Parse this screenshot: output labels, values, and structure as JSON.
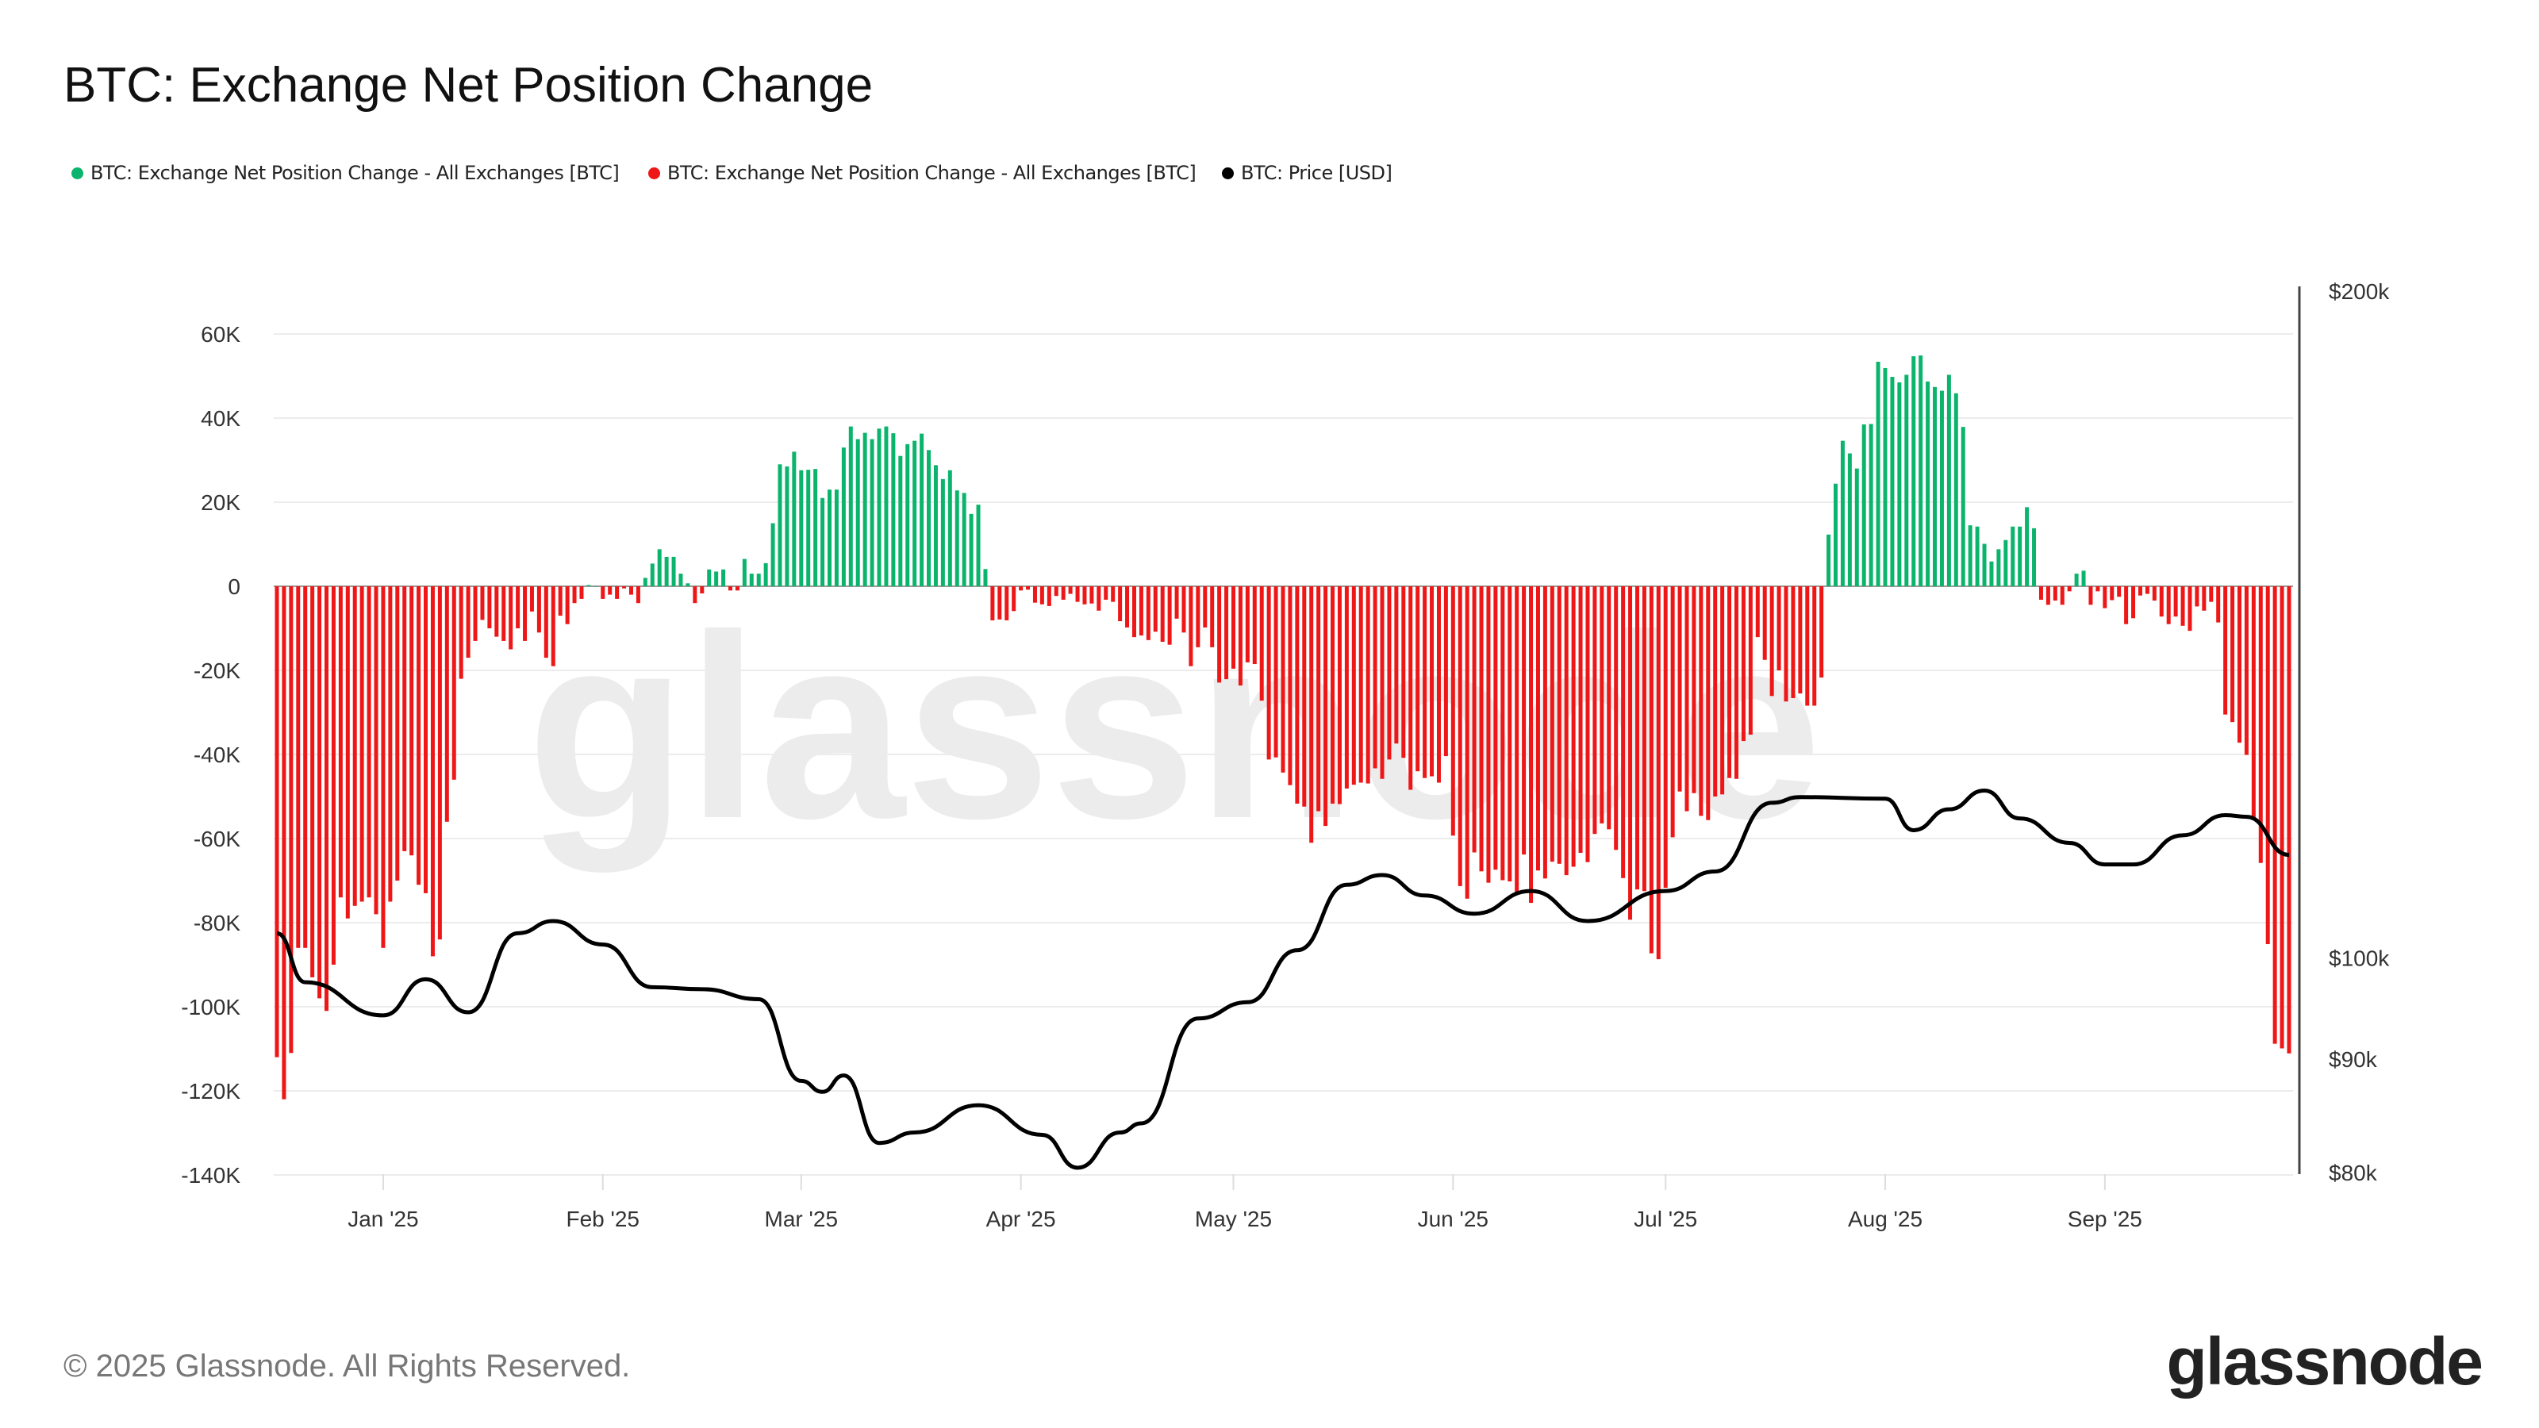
{
  "title": "BTC: Exchange Net Position Change",
  "legend": [
    {
      "label": "BTC: Exchange Net Position Change - All Exchanges [BTC]",
      "color": "#0bb46c"
    },
    {
      "label": "BTC: Exchange Net Position Change - All Exchanges [BTC]",
      "color": "#ee1616"
    },
    {
      "label": "BTC: Price [USD]",
      "color": "#000000"
    }
  ],
  "footer": "© 2025 Glassnode. All Rights Reserved.",
  "logo": "glassnode",
  "watermark": "glassnode",
  "chart_data": {
    "type": "bar+line",
    "title": "BTC: Exchange Net Position Change",
    "frequency": "daily",
    "x_range": [
      "2024-12-17",
      "2025-09-27"
    ],
    "x_ticks": [
      "Jan '25",
      "Feb '25",
      "Mar '25",
      "Apr '25",
      "May '25",
      "Jun '25",
      "Jul '25",
      "Aug '25",
      "Sep '25"
    ],
    "x_tick_dates": [
      "2025-01-01",
      "2025-02-01",
      "2025-03-01",
      "2025-04-01",
      "2025-05-01",
      "2025-06-01",
      "2025-07-01",
      "2025-08-01",
      "2025-09-01"
    ],
    "y_left": {
      "ticks": [
        "60K",
        "40K",
        "20K",
        "0",
        "-20K",
        "-40K",
        "-60K",
        "-80K",
        "-100K",
        "-120K",
        "-140K"
      ],
      "tick_values": [
        60000,
        40000,
        20000,
        0,
        -20000,
        -40000,
        -60000,
        -80000,
        -100000,
        -120000,
        -140000
      ],
      "range": [
        -140000,
        60000
      ]
    },
    "y_right": {
      "scale": "log",
      "ticks": [
        "$200k",
        "$100k",
        "$90k",
        "$80k"
      ],
      "tick_values": [
        200000,
        100000,
        90000,
        80000
      ],
      "range": [
        80000,
        200000
      ]
    },
    "grid": true,
    "legend_position": "top-left",
    "positive_color": "#0bb46c",
    "negative_color": "#ee1616",
    "net_position_change_k_btc": [
      -112,
      -122,
      -111,
      -86,
      -86,
      -93,
      -98,
      -101,
      -90,
      -74,
      -79,
      -76,
      -75,
      -74,
      -78,
      -86,
      -75,
      -70,
      -63,
      -64,
      -71,
      -73,
      -88,
      -84,
      -56,
      -46,
      -22,
      -17,
      -13,
      -8,
      -10,
      -12,
      -13,
      -15,
      -10,
      -13,
      -6,
      -11,
      -17,
      -19,
      -7,
      -9,
      -4,
      -3,
      0.3,
      0,
      -3,
      -2,
      -3,
      -0.5,
      -2,
      -4,
      2,
      5.4,
      8.8,
      7,
      7,
      3,
      0.7,
      -4,
      -1.7,
      4,
      3.5,
      4,
      -1,
      -1,
      6.5,
      3,
      3,
      5.5,
      15,
      29,
      28.5,
      32,
      27.6,
      27.7,
      27.9,
      21,
      23,
      23,
      33,
      38,
      35,
      36.5,
      35,
      37.5,
      38,
      36.4,
      31,
      33.8,
      34.6,
      36.3,
      32.4,
      28.8,
      25.5,
      27.6,
      22.8,
      22.2,
      17.2,
      19.4,
      4.1,
      -8.1,
      -7.9,
      -8.1,
      -5.9,
      -1,
      -0.8,
      -3.9,
      -4.3,
      -4.7,
      -2.3,
      -3.2,
      -1.8,
      -3.7,
      -4.3,
      -4.1,
      -5.8,
      -3.2,
      -3.7,
      -8.3,
      -9.8,
      -12.1,
      -11.7,
      -12.8,
      -10.8,
      -13.2,
      -13.9,
      -7.7,
      -11,
      -19,
      -14.5,
      -9.8,
      -14.5,
      -22.9,
      -22.1,
      -19.6,
      -23.6,
      -18.1,
      -18.5,
      -27.2,
      -41.2,
      -40.7,
      -44.3,
      -47.3,
      -51.7,
      -52.4,
      -61,
      -53.5,
      -57,
      -51.7,
      -51.8,
      -48.1,
      -47.2,
      -46.7,
      -46.9,
      -43.3,
      -45.8,
      -41.2,
      -37.4,
      -40.8,
      -48.4,
      -44,
      -45.6,
      -45.2,
      -46.7,
      -40.4,
      -59.3,
      -71.3,
      -74.3,
      -63.3,
      -67.8,
      -70.5,
      -67.4,
      -69.9,
      -70.2,
      -73.2,
      -63.8,
      -75.3,
      -67.6,
      -69.5,
      -65.5,
      -66,
      -68.7,
      -66.7,
      -63.4,
      -65.6,
      -58.9,
      -56.4,
      -57.8,
      -62.7,
      -69.4,
      -79.3,
      -72.1,
      -72.5,
      -87.3,
      -88.7,
      -71.7,
      -59.7,
      -48.8,
      -53.5,
      -49.2,
      -54.6,
      -55.6,
      -50,
      -49.5,
      -45.6,
      -45.8,
      -36.8,
      -35.3,
      -12.1,
      -17.5,
      -26.1,
      -20,
      -27.4,
      -26.6,
      -25.5,
      -28.4,
      -28.4,
      -21.7,
      12.3,
      24.4,
      34.6,
      31.6,
      28,
      38.5,
      38.6,
      53.4,
      51.9,
      49.8,
      48.5,
      50.3,
      54.7,
      54.9,
      48.7,
      47.4,
      46.5,
      50.3,
      45.9,
      37.9,
      14.5,
      14.2,
      10.1,
      5.9,
      8.8,
      11,
      14.2,
      14.2,
      18.8,
      13.8,
      -3.2,
      -4.4,
      -3.4,
      -4.4,
      -1.2,
      3,
      3.7,
      -4.4,
      -1.2,
      -5.2,
      -3.3,
      -2.5,
      -9,
      -7.6,
      -2.2,
      -1.8,
      -3.4,
      -7.2,
      -9,
      -7.2,
      -9.4,
      -10.6,
      -4.8,
      -5.8,
      -3.7,
      -8.6,
      -30.5,
      -32.3,
      -37.2,
      -40.1,
      -55.6,
      -65.8,
      -85.1,
      -108.8,
      -109.9,
      -111.1
    ],
    "price_usd_k": [
      [
        "2024-12-17",
        102.6
      ],
      [
        "2024-12-21",
        97.5
      ],
      [
        "2025-01-01",
        94.2
      ],
      [
        "2025-01-07",
        97.8
      ],
      [
        "2025-01-13",
        94.5
      ],
      [
        "2025-01-20",
        102.6
      ],
      [
        "2025-01-25",
        103.9
      ],
      [
        "2025-02-01",
        101.4
      ],
      [
        "2025-02-08",
        97
      ],
      [
        "2025-02-15",
        96.8
      ],
      [
        "2025-02-23",
        95.8
      ],
      [
        "2025-03-01",
        88
      ],
      [
        "2025-03-04",
        87
      ],
      [
        "2025-03-07",
        88.5
      ],
      [
        "2025-03-12",
        82.5
      ],
      [
        "2025-03-17",
        83.4
      ],
      [
        "2025-03-26",
        85.8
      ],
      [
        "2025-04-04",
        83.2
      ],
      [
        "2025-04-09",
        80.4
      ],
      [
        "2025-04-15",
        83.4
      ],
      [
        "2025-04-18",
        84.2
      ],
      [
        "2025-04-26",
        93.9
      ],
      [
        "2025-05-03",
        95.5
      ],
      [
        "2025-05-10",
        100.8
      ],
      [
        "2025-05-17",
        107.9
      ],
      [
        "2025-05-22",
        109
      ],
      [
        "2025-05-28",
        106.7
      ],
      [
        "2025-06-04",
        104.7
      ],
      [
        "2025-06-12",
        107.2
      ],
      [
        "2025-06-20",
        103.9
      ],
      [
        "2025-07-01",
        107.2
      ],
      [
        "2025-07-08",
        109.4
      ],
      [
        "2025-07-16",
        117.5
      ],
      [
        "2025-07-20",
        118.2
      ],
      [
        "2025-08-01",
        118
      ],
      [
        "2025-08-05",
        114.2
      ],
      [
        "2025-08-10",
        116.7
      ],
      [
        "2025-08-15",
        119
      ],
      [
        "2025-08-20",
        115.6
      ],
      [
        "2025-08-27",
        112.7
      ],
      [
        "2025-09-01",
        110.2
      ],
      [
        "2025-09-05",
        110.2
      ],
      [
        "2025-09-12",
        113.6
      ],
      [
        "2025-09-18",
        116
      ],
      [
        "2025-09-21",
        115.8
      ],
      [
        "2025-09-27",
        111.3
      ]
    ]
  }
}
